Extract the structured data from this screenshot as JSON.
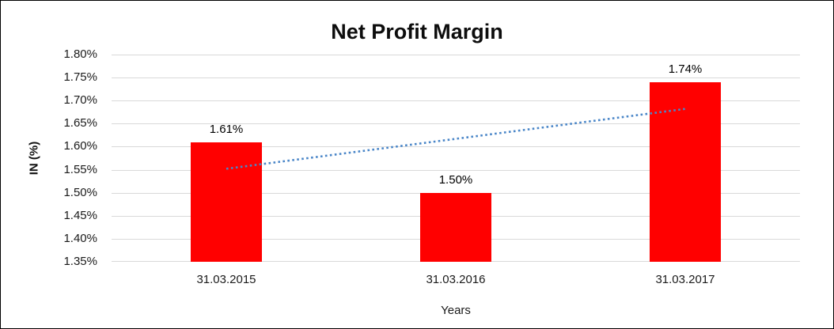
{
  "chart_data": {
    "type": "bar",
    "title": "Net Profit Margin",
    "xlabel": "Years",
    "ylabel": "IN (%)",
    "categories": [
      "31.03.2015",
      "31.03.2016",
      "31.03.2017"
    ],
    "values": [
      1.61,
      1.5,
      1.74
    ],
    "data_labels": [
      "1.61%",
      "1.50%",
      "1.74%"
    ],
    "ylim": [
      1.35,
      1.8
    ],
    "ytick_step": 0.05,
    "ytick_labels": [
      "1.35%",
      "1.40%",
      "1.45%",
      "1.50%",
      "1.55%",
      "1.60%",
      "1.65%",
      "1.70%",
      "1.75%",
      "1.80%"
    ],
    "grid": true,
    "legend": "none",
    "bar_color": "#FF0000",
    "gridline_color": "#D9D9D9",
    "trendline": {
      "style": "dotted",
      "color": "#4A86C8",
      "start_value": 1.552,
      "end_value": 1.682
    }
  }
}
